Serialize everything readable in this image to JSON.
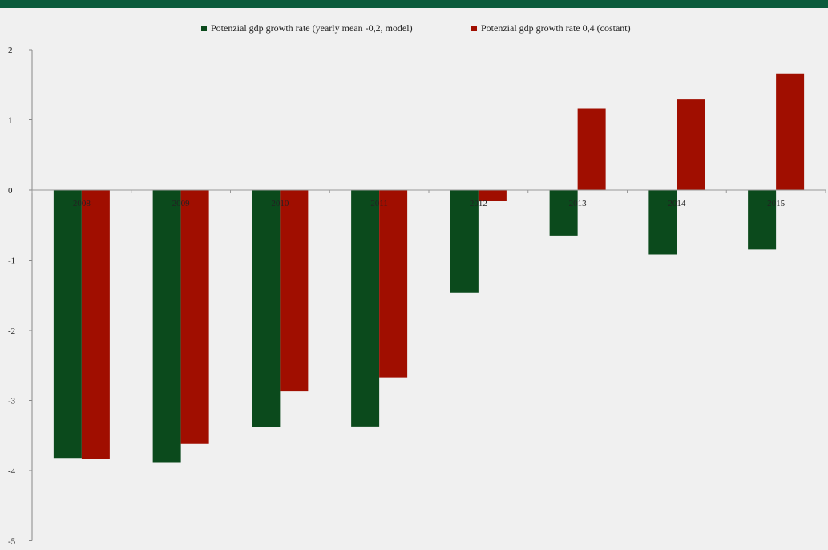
{
  "chart_data": {
    "type": "bar",
    "categories": [
      "2008",
      "2009",
      "2010",
      "2011",
      "2012",
      "2013",
      "2014",
      "2015"
    ],
    "series": [
      {
        "name": "Potenzial gdp growth rate (yearly mean -0,2, model)",
        "color": "#0b4a1c",
        "values": [
          -3.82,
          -3.88,
          -3.38,
          -3.37,
          -1.46,
          -0.65,
          -0.92,
          -0.85
        ]
      },
      {
        "name": "Potenzial gdp growth rate 0,4 (costant)",
        "color": "#a00e00",
        "values": [
          -3.83,
          -3.62,
          -2.87,
          -2.67,
          -0.16,
          1.16,
          1.29,
          1.66
        ]
      }
    ],
    "yticks": [
      2,
      1,
      0,
      -1,
      -2,
      -3,
      -4,
      -5
    ],
    "ylim": [
      -5,
      2
    ],
    "title": "",
    "xlabel": "",
    "ylabel": "",
    "grid": false,
    "legend_position": "top"
  }
}
